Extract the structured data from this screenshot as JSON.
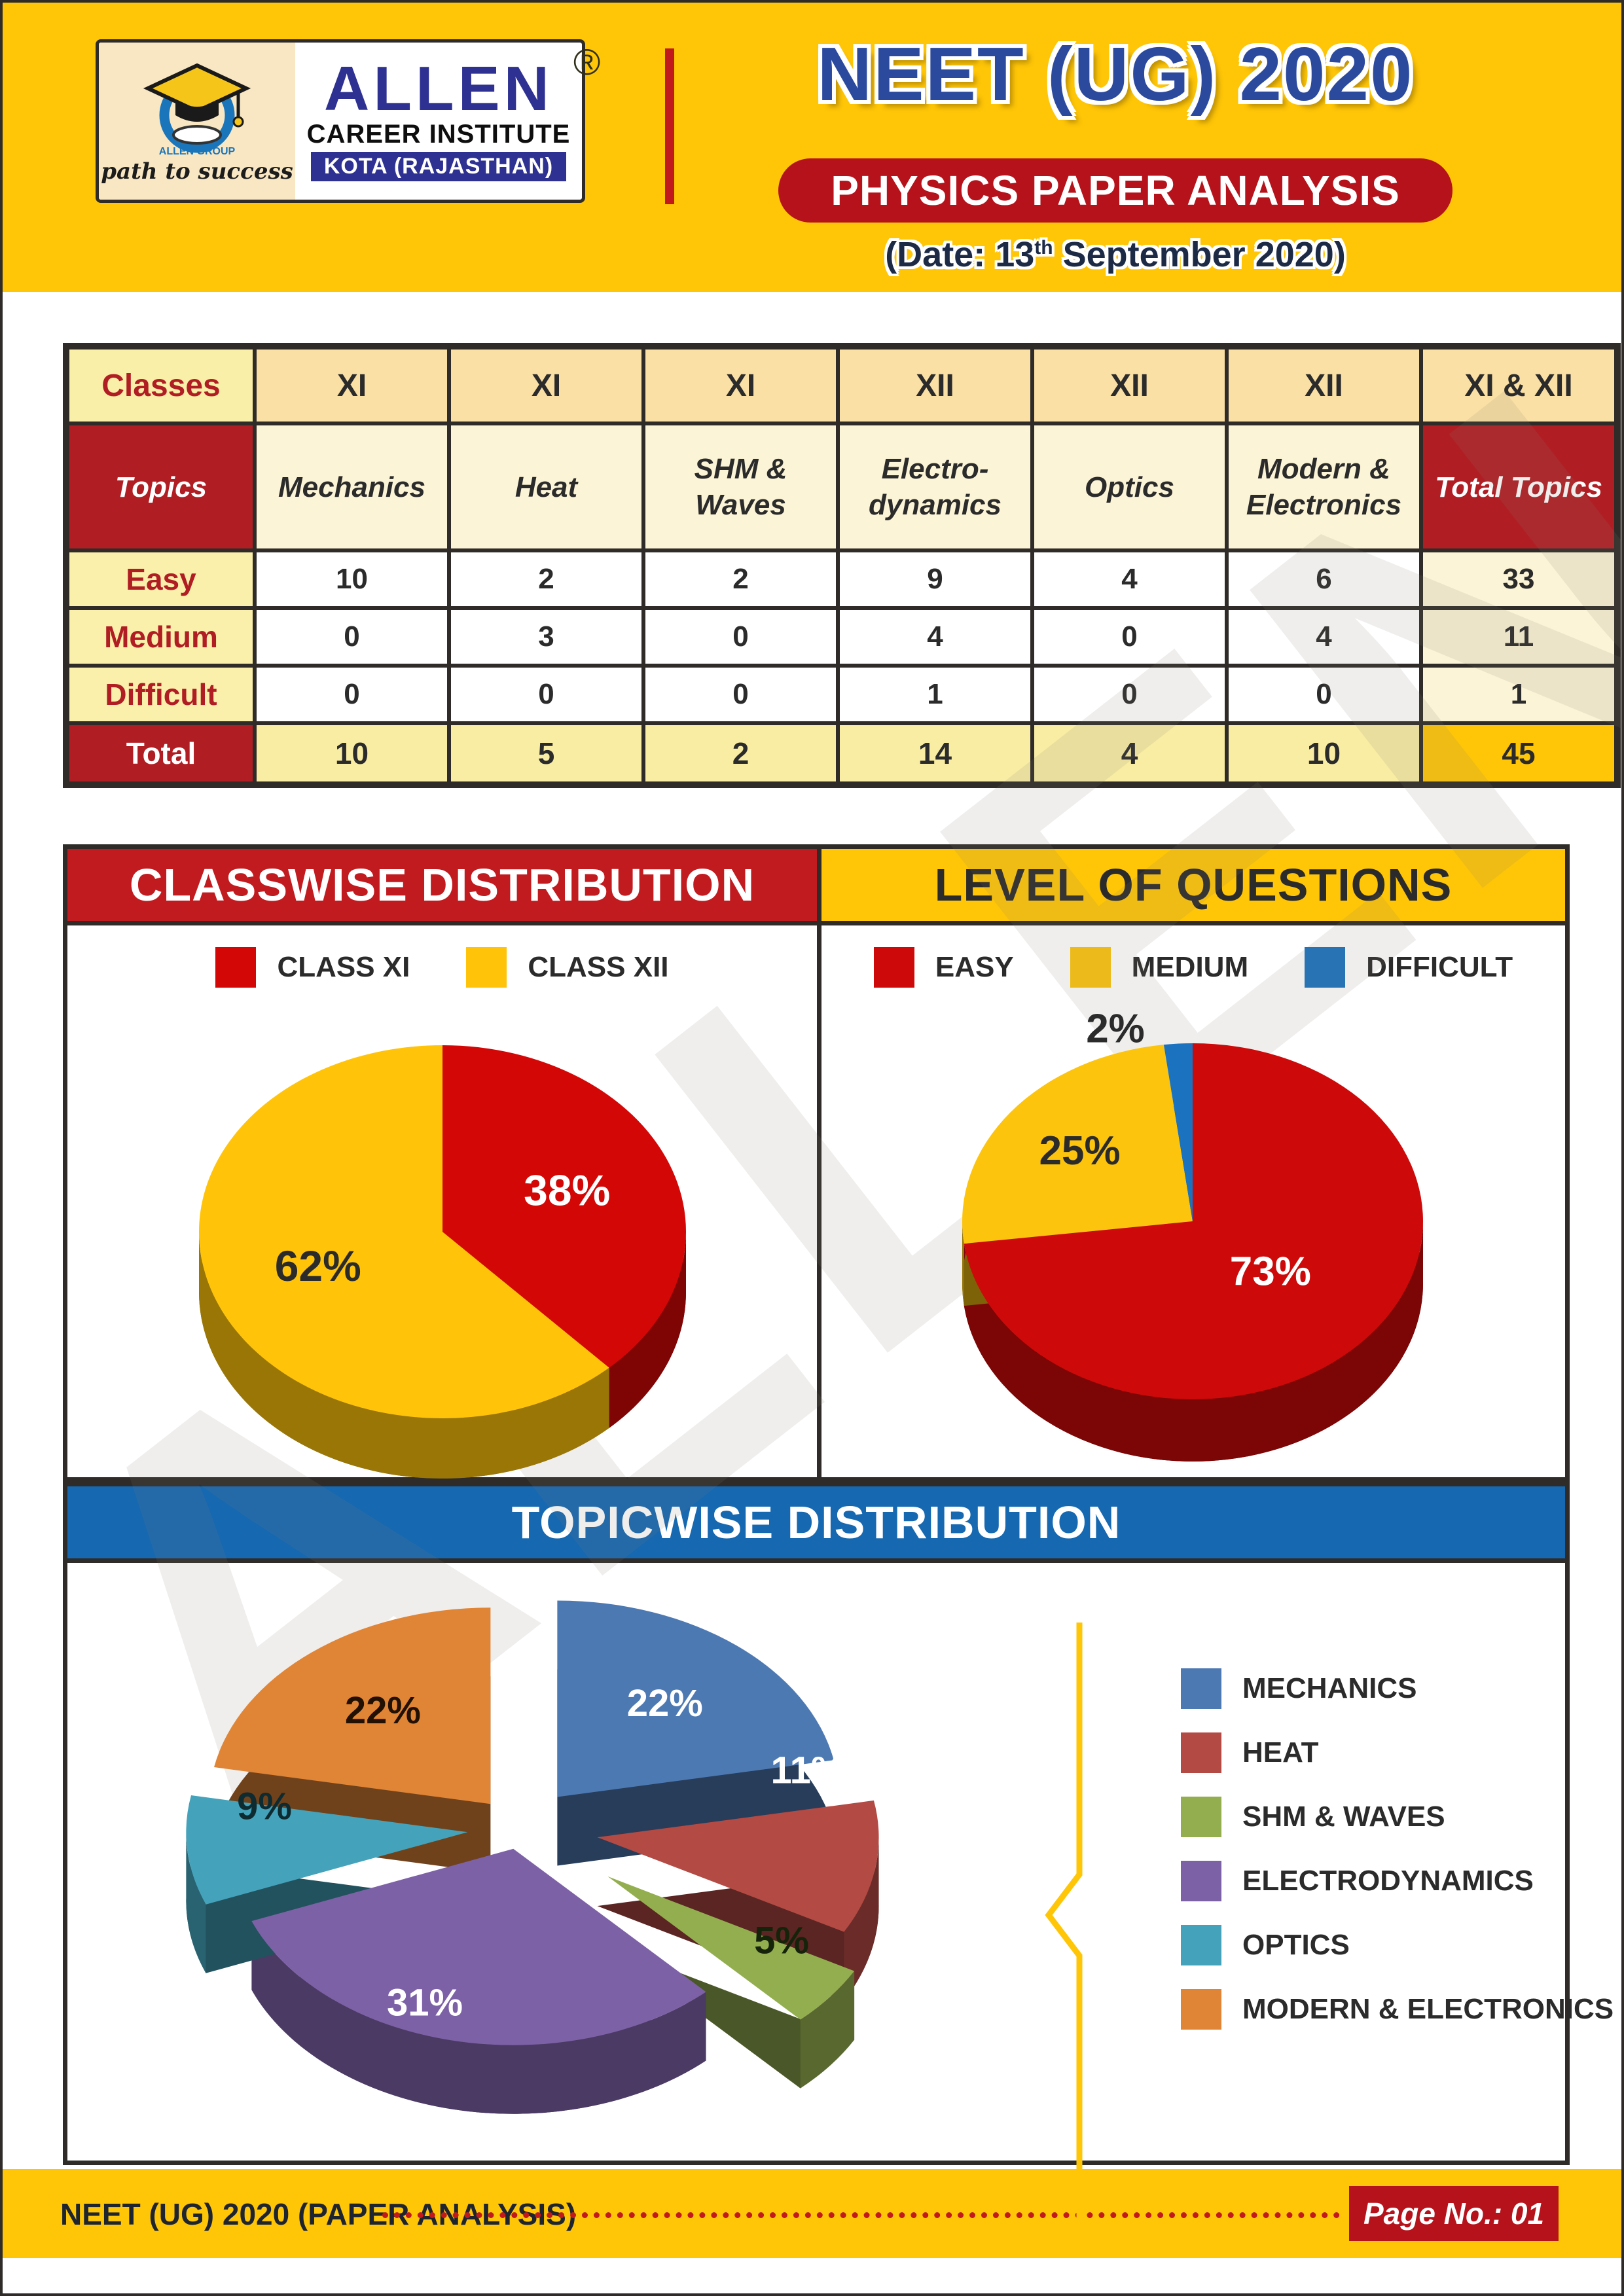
{
  "header": {
    "logo": {
      "brand": "ALLEN",
      "sub": "CAREER INSTITUTE",
      "city": "KOTA (RAJASTHAN)",
      "tagline": "path to success",
      "group": "ALLEN GROUP",
      "reg": "®"
    },
    "title": "NEET (UG) 2020",
    "subtitle": "PHYSICS PAPER ANALYSIS",
    "date_prefix": "(Date: 13",
    "date_sup": "th",
    "date_suffix": " September 2020)"
  },
  "table": {
    "classes_label": "Classes",
    "topics_label": "Topics",
    "class_cols": [
      "XI",
      "XI",
      "XI",
      "XII",
      "XII",
      "XII",
      "XI & XII"
    ],
    "topic_cols": [
      "Mechanics",
      "Heat",
      "SHM & Waves",
      "Electro-dynamics",
      "Optics",
      "Modern & Electronics",
      "Total Topics"
    ],
    "rows": [
      {
        "label": "Easy",
        "values": [
          10,
          2,
          2,
          9,
          4,
          6,
          33
        ]
      },
      {
        "label": "Medium",
        "values": [
          0,
          3,
          0,
          4,
          0,
          4,
          11
        ]
      },
      {
        "label": "Difficult",
        "values": [
          0,
          0,
          0,
          1,
          0,
          0,
          1
        ]
      },
      {
        "label": "Total",
        "values": [
          10,
          5,
          2,
          14,
          4,
          10,
          45
        ]
      }
    ]
  },
  "chart_data": [
    {
      "type": "pie",
      "title": "CLASSWISE DISTRIBUTION",
      "labels": [
        "CLASS XI",
        "CLASS XII"
      ],
      "values": [
        38,
        62
      ],
      "colors": [
        "#D40707",
        "#FFC40A"
      ],
      "legend_position": "top",
      "style": "3d",
      "start_angle_deg": 0,
      "direction": "clockwise"
    },
    {
      "type": "pie",
      "title": "LEVEL OF QUESTIONS",
      "labels": [
        "EASY",
        "MEDIUM",
        "DIFFICULT"
      ],
      "values": [
        73,
        25,
        2
      ],
      "colors": [
        "#CE0909",
        "#FCC40D",
        "#1B72BE"
      ],
      "legend_position": "top",
      "style": "3d",
      "start_angle_deg": 0,
      "direction": "clockwise"
    },
    {
      "type": "pie",
      "title": "TOPICWISE DISTRIBUTION",
      "labels": [
        "MECHANICS",
        "HEAT",
        "SHM & WAVES",
        "ELECTRODYNAMICS",
        "OPTICS",
        "MODERN & ELECTRONICS"
      ],
      "values": [
        22,
        11,
        5,
        31,
        9,
        22
      ],
      "colors": [
        "#4d79b3",
        "#b34a44",
        "#93ae4f",
        "#7d61a6",
        "#44a3bb",
        "#e08436"
      ],
      "legend_position": "right",
      "style": "3d-exploded",
      "start_angle_deg": 0,
      "direction": "clockwise"
    }
  ],
  "watermark": "ALLEN",
  "footer": {
    "left_text": "NEET (UG) 2020 (PAPER ANALYSIS)",
    "page_label": "Page No.: 01"
  },
  "accent_colors": {
    "page_yellow": "#FFC607",
    "brand_red": "#B5121B",
    "brand_blue": "#2E3192",
    "band_blue": "#1668B0",
    "border_dark": "#2e2b28"
  }
}
